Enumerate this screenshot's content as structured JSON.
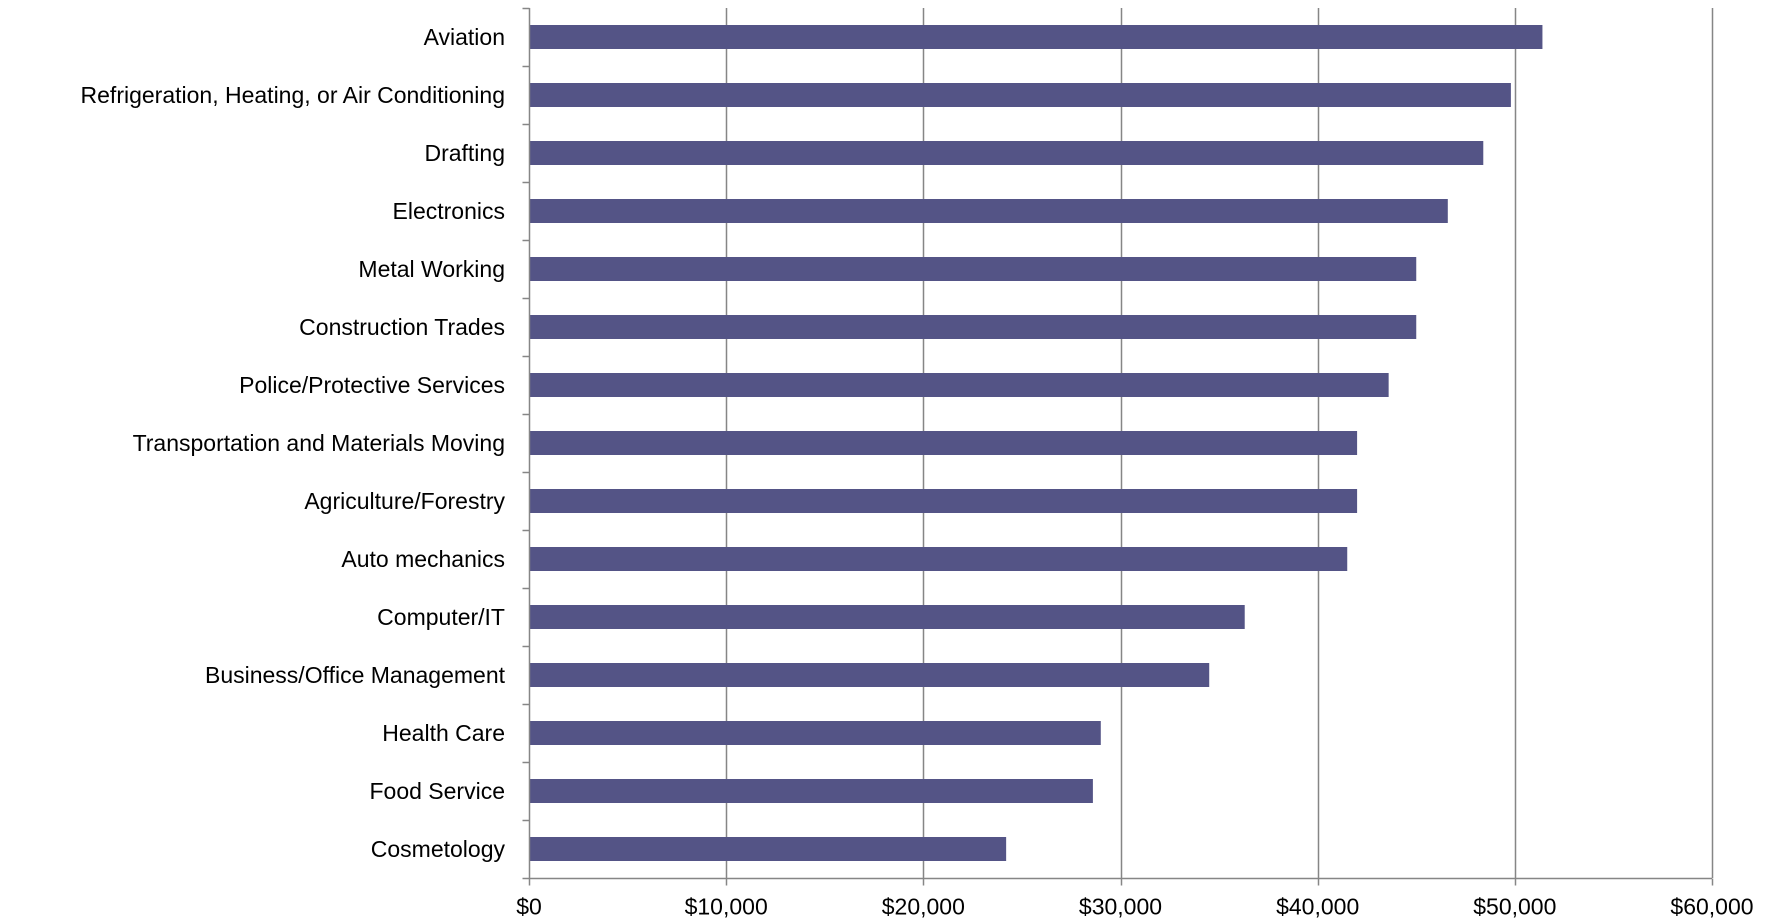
{
  "chart_data": {
    "type": "bar",
    "orientation": "horizontal",
    "title": "",
    "xlabel": "",
    "ylabel": "",
    "categories": [
      "Aviation",
      "Refrigeration, Heating, or Air Conditioning",
      "Drafting",
      "Electronics",
      "Metal Working",
      "Construction Trades",
      "Police/Protective Services",
      "Transportation and Materials Moving",
      "Agriculture/Forestry",
      "Auto mechanics",
      "Computer/IT",
      "Business/Office Management",
      "Health Care",
      "Food Service",
      "Cosmetology"
    ],
    "values": [
      51400,
      49800,
      48400,
      46600,
      45000,
      45000,
      43600,
      42000,
      42000,
      41500,
      36300,
      34500,
      29000,
      28600,
      24200
    ],
    "xlim": [
      0,
      60000
    ],
    "x_ticks": [
      0,
      10000,
      20000,
      30000,
      40000,
      50000,
      60000
    ],
    "x_tick_labels": [
      "$0",
      "$10,000",
      "$20,000",
      "$30,000",
      "$40,000",
      "$50,000",
      "$60,000"
    ],
    "grid": "vertical major gridlines",
    "legend": "none",
    "colors": {
      "bar": "#545486",
      "grid": "#868686",
      "axis": "#868686"
    }
  }
}
